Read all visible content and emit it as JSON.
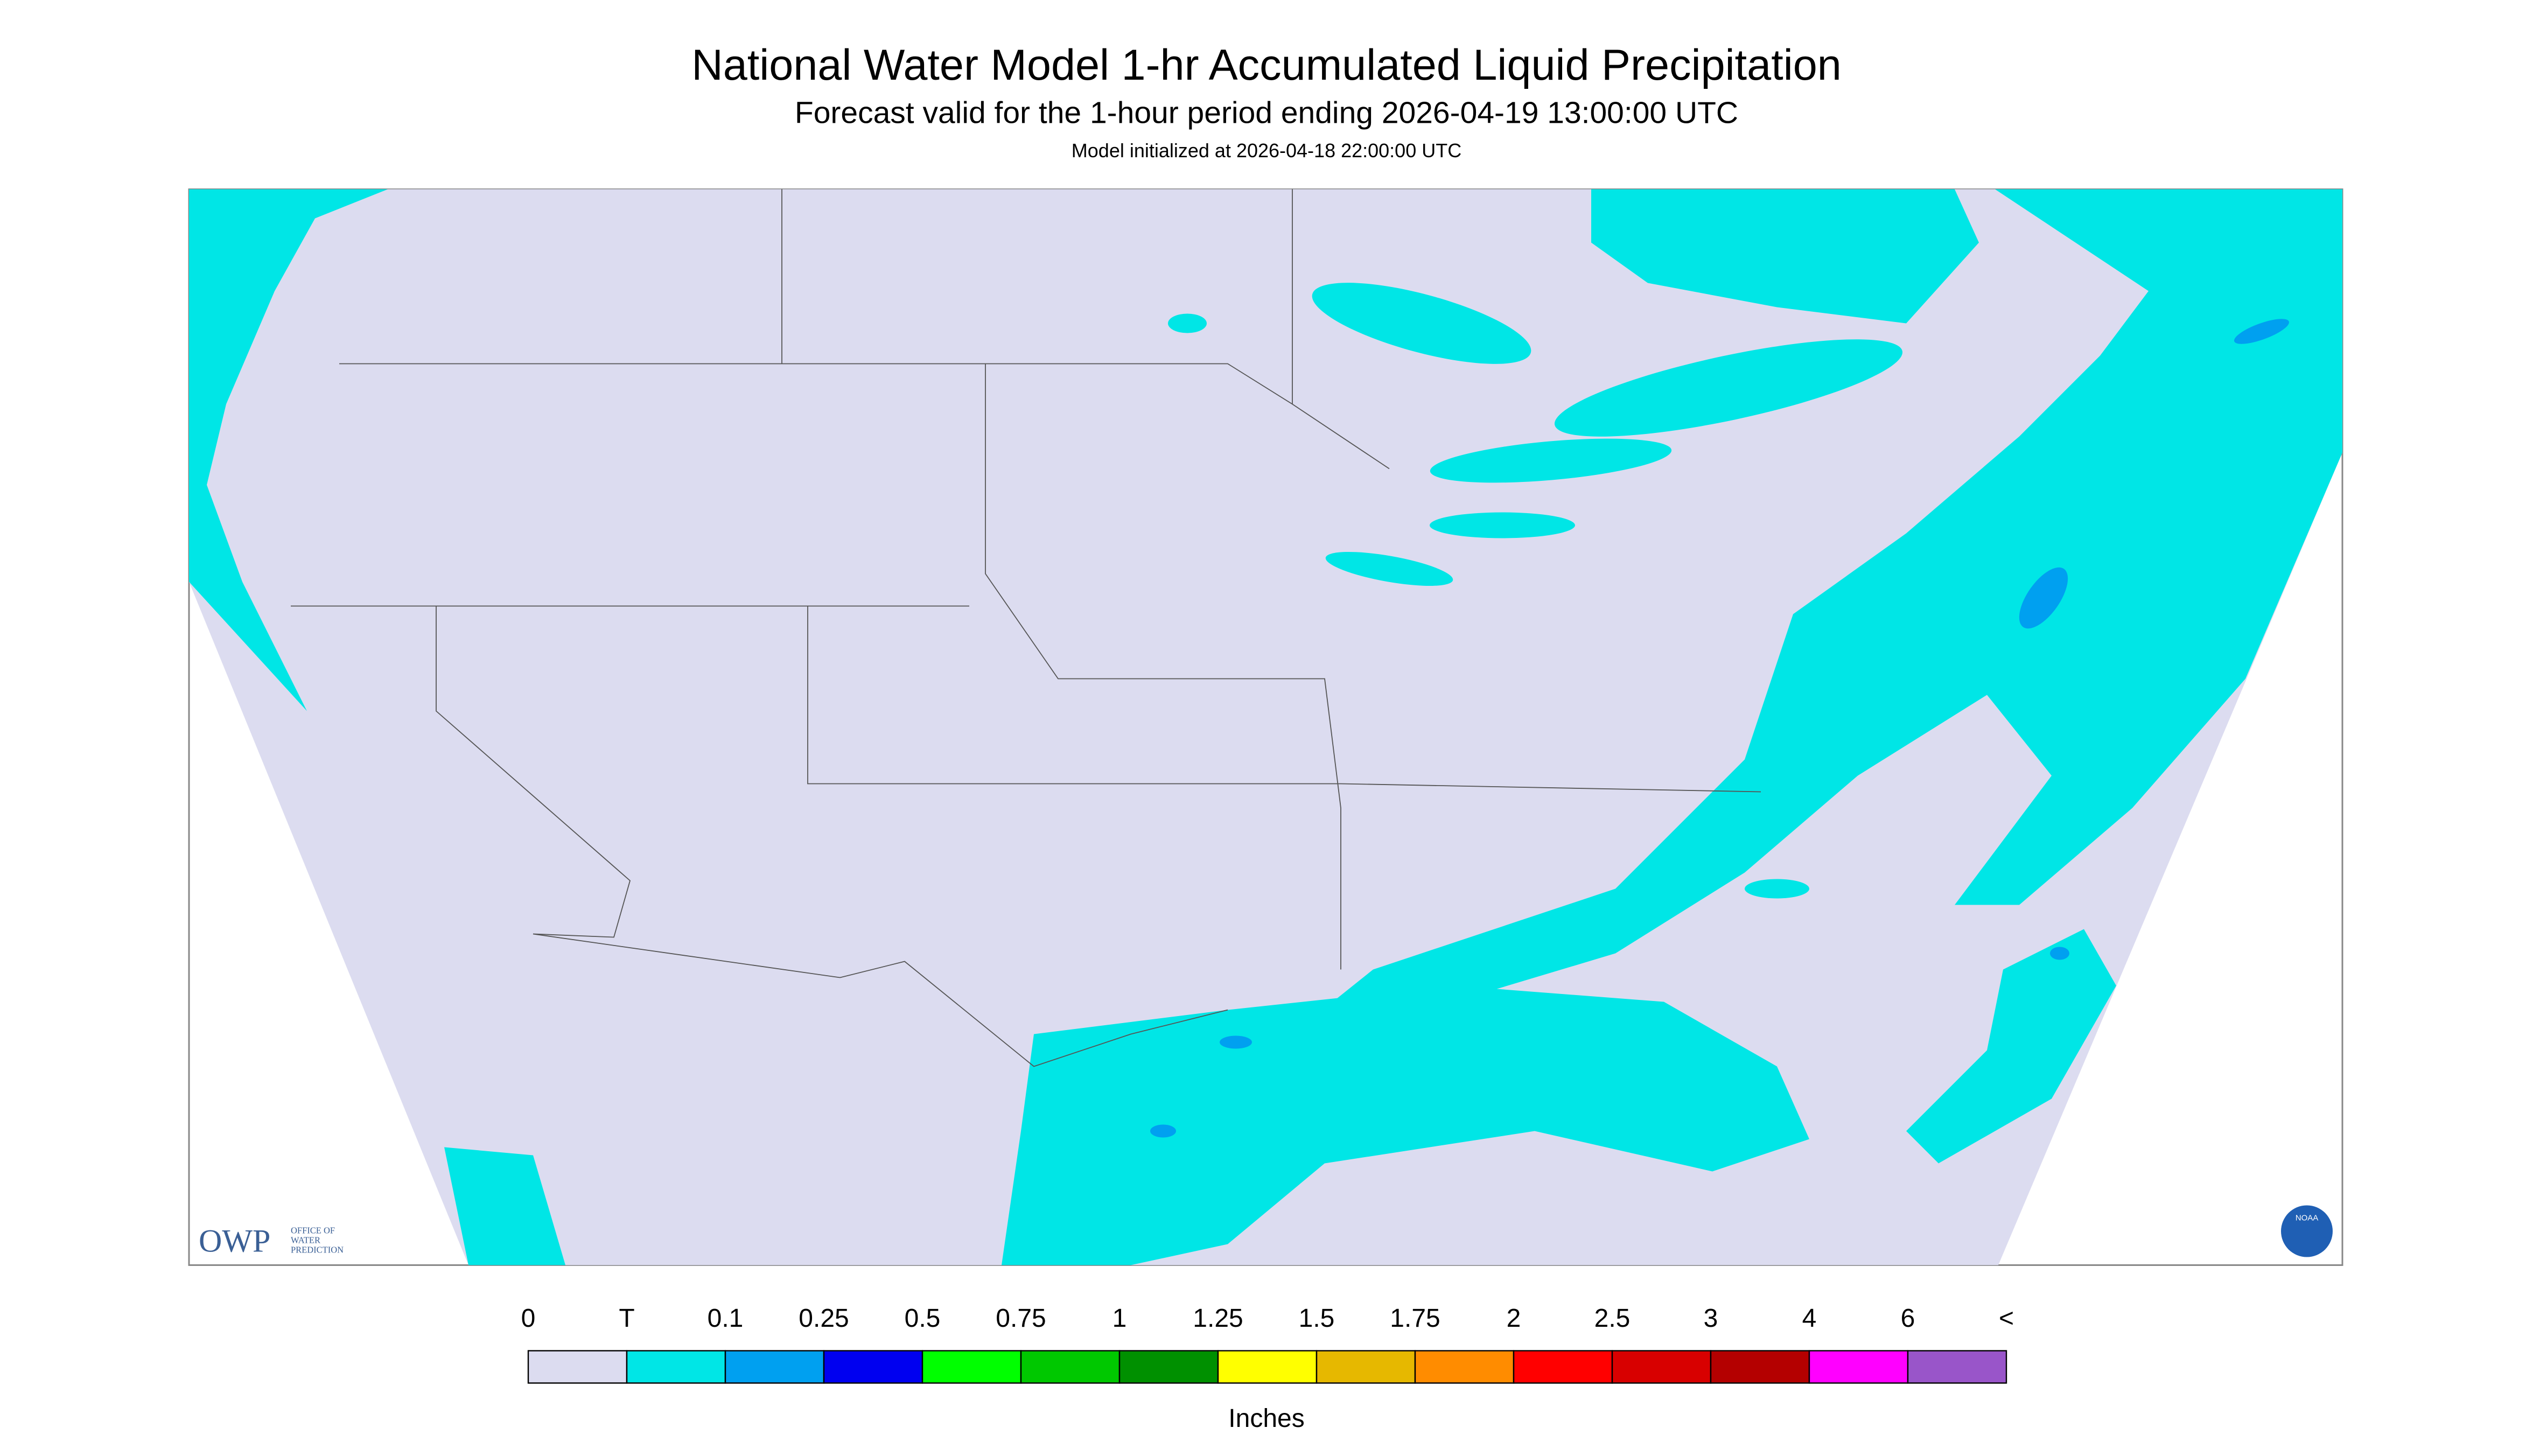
{
  "header": {
    "title": "National Water Model 1-hr Accumulated Liquid Precipitation",
    "subtitle": "Forecast valid for the 1-hour period ending 2026-04-19 13:00:00 UTC",
    "initialized": "Model initialized at 2026-04-18 22:00:00 UTC"
  },
  "legend": {
    "labels": [
      "0",
      "T",
      "0.1",
      "0.25",
      "0.5",
      "0.75",
      "1",
      "1.25",
      "1.5",
      "1.75",
      "2",
      "2.5",
      "3",
      "4",
      "6",
      "<"
    ],
    "colors": [
      "#dcdcf0",
      "#00e6e6",
      "#00a0f0",
      "#0000f0",
      "#00ff00",
      "#00c800",
      "#009000",
      "#ffff00",
      "#e6b800",
      "#ff8c00",
      "#ff0000",
      "#d80000",
      "#b40000",
      "#ff00ff",
      "#9955c9"
    ],
    "unit": "Inches"
  },
  "logos": {
    "owp": "OWP",
    "owp_lines": [
      "OFFICE OF",
      "WATER",
      "PREDICTION"
    ],
    "noaa": "NOAA"
  }
}
